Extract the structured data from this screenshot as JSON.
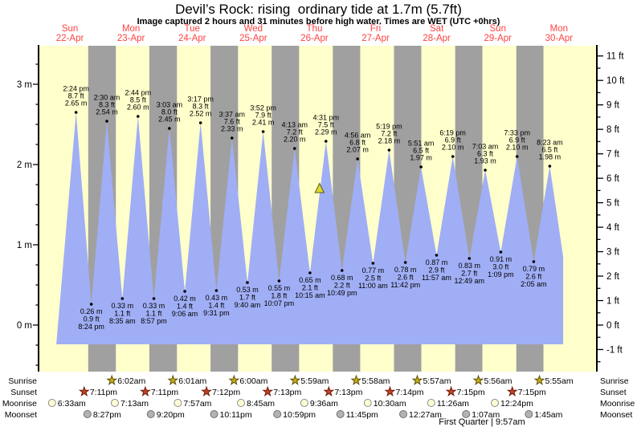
{
  "title": "Devil’s Rock: rising  ordinary tide at 1.7m (5.7ft)",
  "subtitle": "Image captured 2 hours and 31 minutes before high water. Times are WET (UTC +0hrs)",
  "moon_phase": "First Quarter | 9:57am",
  "colors": {
    "day_bg": "#ffffcc",
    "night_bg": "#a0a0a0",
    "water": "#a0aef5",
    "day_label_red": "#ff4141",
    "sunrise_star_fill": "#c7ad17",
    "sunrise_star_stroke": "#5d5108",
    "sunset_star_fill": "#c44122",
    "sunset_star_stroke": "#6e1e0e",
    "moonrise_fill": "#ffffd6",
    "moonrise_stroke": "#8a8a8a",
    "moonset_fill": "#b3b3b3",
    "moonset_stroke": "#6f6f6f",
    "marker_fill": "#d9d931",
    "marker_stroke": "#5c5c14"
  },
  "chart_data": {
    "type": "area",
    "title": "Devil’s Rock: rising ordinary tide at 1.7m (5.7ft)",
    "y_axis_left": {
      "unit": "m",
      "major_ticks": [
        0,
        1,
        2,
        3
      ],
      "minor_step": 0.25,
      "minor_min": -0.5,
      "minor_max": 3.25
    },
    "y_axis_right": {
      "unit": "ft",
      "major_ticks": [
        -1,
        0,
        1,
        2,
        3,
        4,
        5,
        6,
        7,
        8,
        9,
        10,
        11
      ],
      "minor_step": 0.5,
      "minor_min": -1.5,
      "minor_max": 11
    },
    "days": [
      {
        "name": "Sun",
        "date": "22-Apr"
      },
      {
        "name": "Mon",
        "date": "23-Apr"
      },
      {
        "name": "Tue",
        "date": "24-Apr"
      },
      {
        "name": "Wed",
        "date": "25-Apr"
      },
      {
        "name": "Thu",
        "date": "26-Apr"
      },
      {
        "name": "Fri",
        "date": "27-Apr"
      },
      {
        "name": "Sat",
        "date": "28-Apr"
      },
      {
        "name": "Sun",
        "date": "29-Apr"
      },
      {
        "name": "Mon",
        "date": "30-Apr"
      }
    ],
    "curve_start": {
      "day": 0,
      "time": "6:40 am",
      "level_m": -0.24
    },
    "curve_end": {
      "day": 8,
      "time": "1:40 pm",
      "level_m": 0.85
    },
    "baseline_m": -0.24,
    "tide_events": [
      {
        "type": "high",
        "day": 0,
        "time": "2:24 pm",
        "ft": "8.7",
        "m": "2.65"
      },
      {
        "type": "low",
        "day": 0,
        "time": "8:24 pm",
        "ft": "0.9",
        "m": "0.26"
      },
      {
        "type": "high",
        "day": 1,
        "time": "2:30 am",
        "ft": "8.3",
        "m": "2.54"
      },
      {
        "type": "low",
        "day": 1,
        "time": "8:35 am",
        "ft": "1.1",
        "m": "0.33"
      },
      {
        "type": "high",
        "day": 1,
        "time": "2:44 pm",
        "ft": "8.5",
        "m": "2.60"
      },
      {
        "type": "low",
        "day": 1,
        "time": "8:57 pm",
        "ft": "1.1",
        "m": "0.33"
      },
      {
        "type": "high",
        "day": 2,
        "time": "3:03 am",
        "ft": "8.0",
        "m": "2.45"
      },
      {
        "type": "low",
        "day": 2,
        "time": "9:06 am",
        "ft": "1.4",
        "m": "0.42"
      },
      {
        "type": "high",
        "day": 2,
        "time": "3:17 pm",
        "ft": "8.3",
        "m": "2.52"
      },
      {
        "type": "low",
        "day": 2,
        "time": "9:31 pm",
        "ft": "1.4",
        "m": "0.43"
      },
      {
        "type": "high",
        "day": 3,
        "time": "3:37 am",
        "ft": "7.6",
        "m": "2.33"
      },
      {
        "type": "low",
        "day": 3,
        "time": "9:40 am",
        "ft": "1.7",
        "m": "0.53"
      },
      {
        "type": "high",
        "day": 3,
        "time": "3:52 pm",
        "ft": "7.9",
        "m": "2.41"
      },
      {
        "type": "low",
        "day": 3,
        "time": "10:07 pm",
        "ft": "1.8",
        "m": "0.55"
      },
      {
        "type": "high",
        "day": 4,
        "time": "4:13 am",
        "ft": "7.2",
        "m": "2.20"
      },
      {
        "type": "low",
        "day": 4,
        "time": "10:15 am",
        "ft": "2.1",
        "m": "0.65"
      },
      {
        "type": "high",
        "day": 4,
        "time": "4:31 pm",
        "ft": "7.5",
        "m": "2.29"
      },
      {
        "type": "low",
        "day": 4,
        "time": "10:49 pm",
        "ft": "2.2",
        "m": "0.68"
      },
      {
        "type": "high",
        "day": 5,
        "time": "4:56 am",
        "ft": "6.8",
        "m": "2.07"
      },
      {
        "type": "low",
        "day": 5,
        "time": "11:00 am",
        "ft": "2.5",
        "m": "0.77"
      },
      {
        "type": "high",
        "day": 5,
        "time": "5:19 pm",
        "ft": "7.2",
        "m": "2.18"
      },
      {
        "type": "low",
        "day": 5,
        "time": "11:42 pm",
        "ft": "2.6",
        "m": "0.78"
      },
      {
        "type": "high",
        "day": 6,
        "time": "5:51 am",
        "ft": "6.5",
        "m": "1.97"
      },
      {
        "type": "low",
        "day": 6,
        "time": "11:57 am",
        "ft": "2.9",
        "m": "0.87"
      },
      {
        "type": "high",
        "day": 6,
        "time": "6:19 pm",
        "ft": "6.9",
        "m": "2.10"
      },
      {
        "type": "low",
        "day": 7,
        "time": "12:49 am",
        "ft": "2.7",
        "m": "0.83"
      },
      {
        "type": "high",
        "day": 7,
        "time": "7:03 am",
        "ft": "6.3",
        "m": "1.93"
      },
      {
        "type": "low",
        "day": 7,
        "time": "1:09 pm",
        "ft": "3.0",
        "m": "0.91"
      },
      {
        "type": "high",
        "day": 7,
        "time": "7:33 pm",
        "ft": "6.9",
        "m": "2.10"
      },
      {
        "type": "low",
        "day": 8,
        "time": "2:05 am",
        "ft": "2.6",
        "m": "0.79"
      },
      {
        "type": "high",
        "day": 8,
        "time": "8:23 am",
        "ft": "6.5",
        "m": "1.98"
      }
    ],
    "current_marker": {
      "day": 4,
      "time": "2:00 pm",
      "level_m": 1.7
    }
  },
  "astro": {
    "rows": [
      {
        "id": "sunrise",
        "label": "Sunrise",
        "events": [
          {
            "day": 1,
            "time": "6:02am"
          },
          {
            "day": 2,
            "time": "6:01am"
          },
          {
            "day": 3,
            "time": "6:00am"
          },
          {
            "day": 4,
            "time": "5:59am"
          },
          {
            "day": 5,
            "time": "5:58am"
          },
          {
            "day": 6,
            "time": "5:57am"
          },
          {
            "day": 7,
            "time": "5:56am"
          },
          {
            "day": 8,
            "time": "5:55am"
          }
        ]
      },
      {
        "id": "sunset",
        "label": "Sunset",
        "events": [
          {
            "day": 0,
            "time": "7:11pm"
          },
          {
            "day": 1,
            "time": "7:11pm"
          },
          {
            "day": 2,
            "time": "7:12pm"
          },
          {
            "day": 3,
            "time": "7:13pm"
          },
          {
            "day": 4,
            "time": "7:13pm"
          },
          {
            "day": 5,
            "time": "7:14pm"
          },
          {
            "day": 6,
            "time": "7:15pm"
          },
          {
            "day": 7,
            "time": "7:15pm"
          }
        ]
      },
      {
        "id": "moonrise",
        "label": "Moonrise",
        "events": [
          {
            "day": 0,
            "time": "6:33am"
          },
          {
            "day": 1,
            "time": "7:13am"
          },
          {
            "day": 2,
            "time": "7:57am"
          },
          {
            "day": 3,
            "time": "8:45am"
          },
          {
            "day": 4,
            "time": "9:36am"
          },
          {
            "day": 5,
            "time": "10:30am"
          },
          {
            "day": 6,
            "time": "11:26am"
          },
          {
            "day": 7,
            "time": "12:24pm"
          }
        ]
      },
      {
        "id": "moonset",
        "label": "Moonset",
        "events": [
          {
            "day": 0,
            "time": "8:27pm"
          },
          {
            "day": 1,
            "time": "9:20pm"
          },
          {
            "day": 2,
            "time": "10:11pm"
          },
          {
            "day": 3,
            "time": "10:59pm"
          },
          {
            "day": 4,
            "time": "11:45pm"
          },
          {
            "day": 6,
            "time": "12:27am"
          },
          {
            "day": 7,
            "time": "1:07am"
          },
          {
            "day": 8,
            "time": "1:45am"
          }
        ]
      }
    ]
  }
}
